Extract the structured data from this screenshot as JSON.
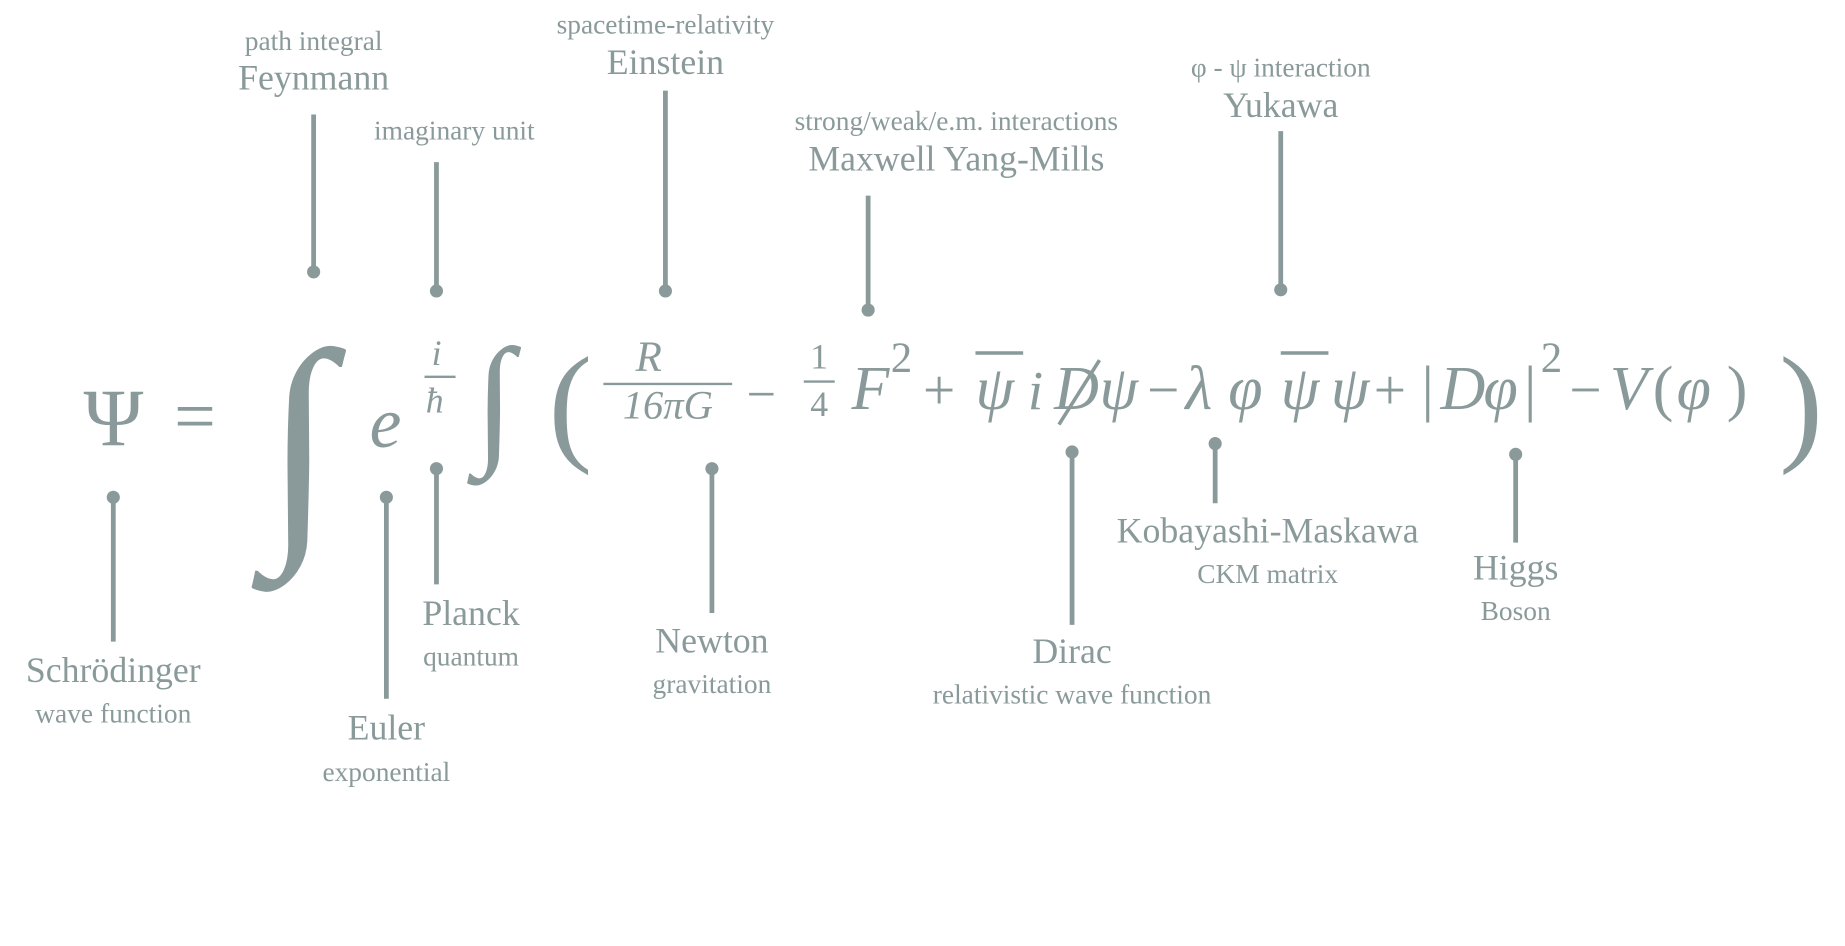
{
  "colors": {
    "ink": "#8a9a9a"
  },
  "equation": {
    "psi": "Ψ",
    "equals": "=",
    "integral": "∫",
    "e": "e",
    "i": "i",
    "hbar": "ħ",
    "lparen": "(",
    "rparen": ")",
    "R": "R",
    "denominator": "16πG",
    "minus": "−",
    "one": "1",
    "four": "4",
    "F": "F",
    "sq": "2",
    "plus": "+",
    "psibar": "ψ",
    "Dslash": "D",
    "psi_small": "ψ",
    "lambda": "λ",
    "varphi": "φ",
    "abs_open": "|",
    "abs_close": "|",
    "D": "D",
    "V": "V",
    "small_lparen": "(",
    "small_rparen": ")"
  },
  "annotations": {
    "feynmann": {
      "subtitle": "path integral",
      "name": "Feynmann"
    },
    "imaginary": {
      "subtitle": "imaginary unit"
    },
    "einstein": {
      "subtitle": "spacetime-relativity",
      "name": "Einstein"
    },
    "maxwell": {
      "subtitle": "strong/weak/e.m. interactions",
      "name": "Maxwell Yang-Mills"
    },
    "yukawa": {
      "subtitle": "φ - ψ interaction",
      "name": "Yukawa"
    },
    "schrodinger": {
      "name": "Schrödinger",
      "subtitle": "wave function"
    },
    "euler": {
      "name": "Euler",
      "subtitle": "exponential"
    },
    "planck": {
      "name": "Planck",
      "subtitle": "quantum"
    },
    "newton": {
      "name": "Newton",
      "subtitle": "gravitation"
    },
    "dirac": {
      "name": "Dirac",
      "subtitle": "relativistic wave function"
    },
    "kobayashi": {
      "name": "Kobayashi-Maskawa",
      "subtitle": "CKM matrix"
    },
    "higgs": {
      "name": "Higgs",
      "subtitle": "Boson"
    }
  }
}
